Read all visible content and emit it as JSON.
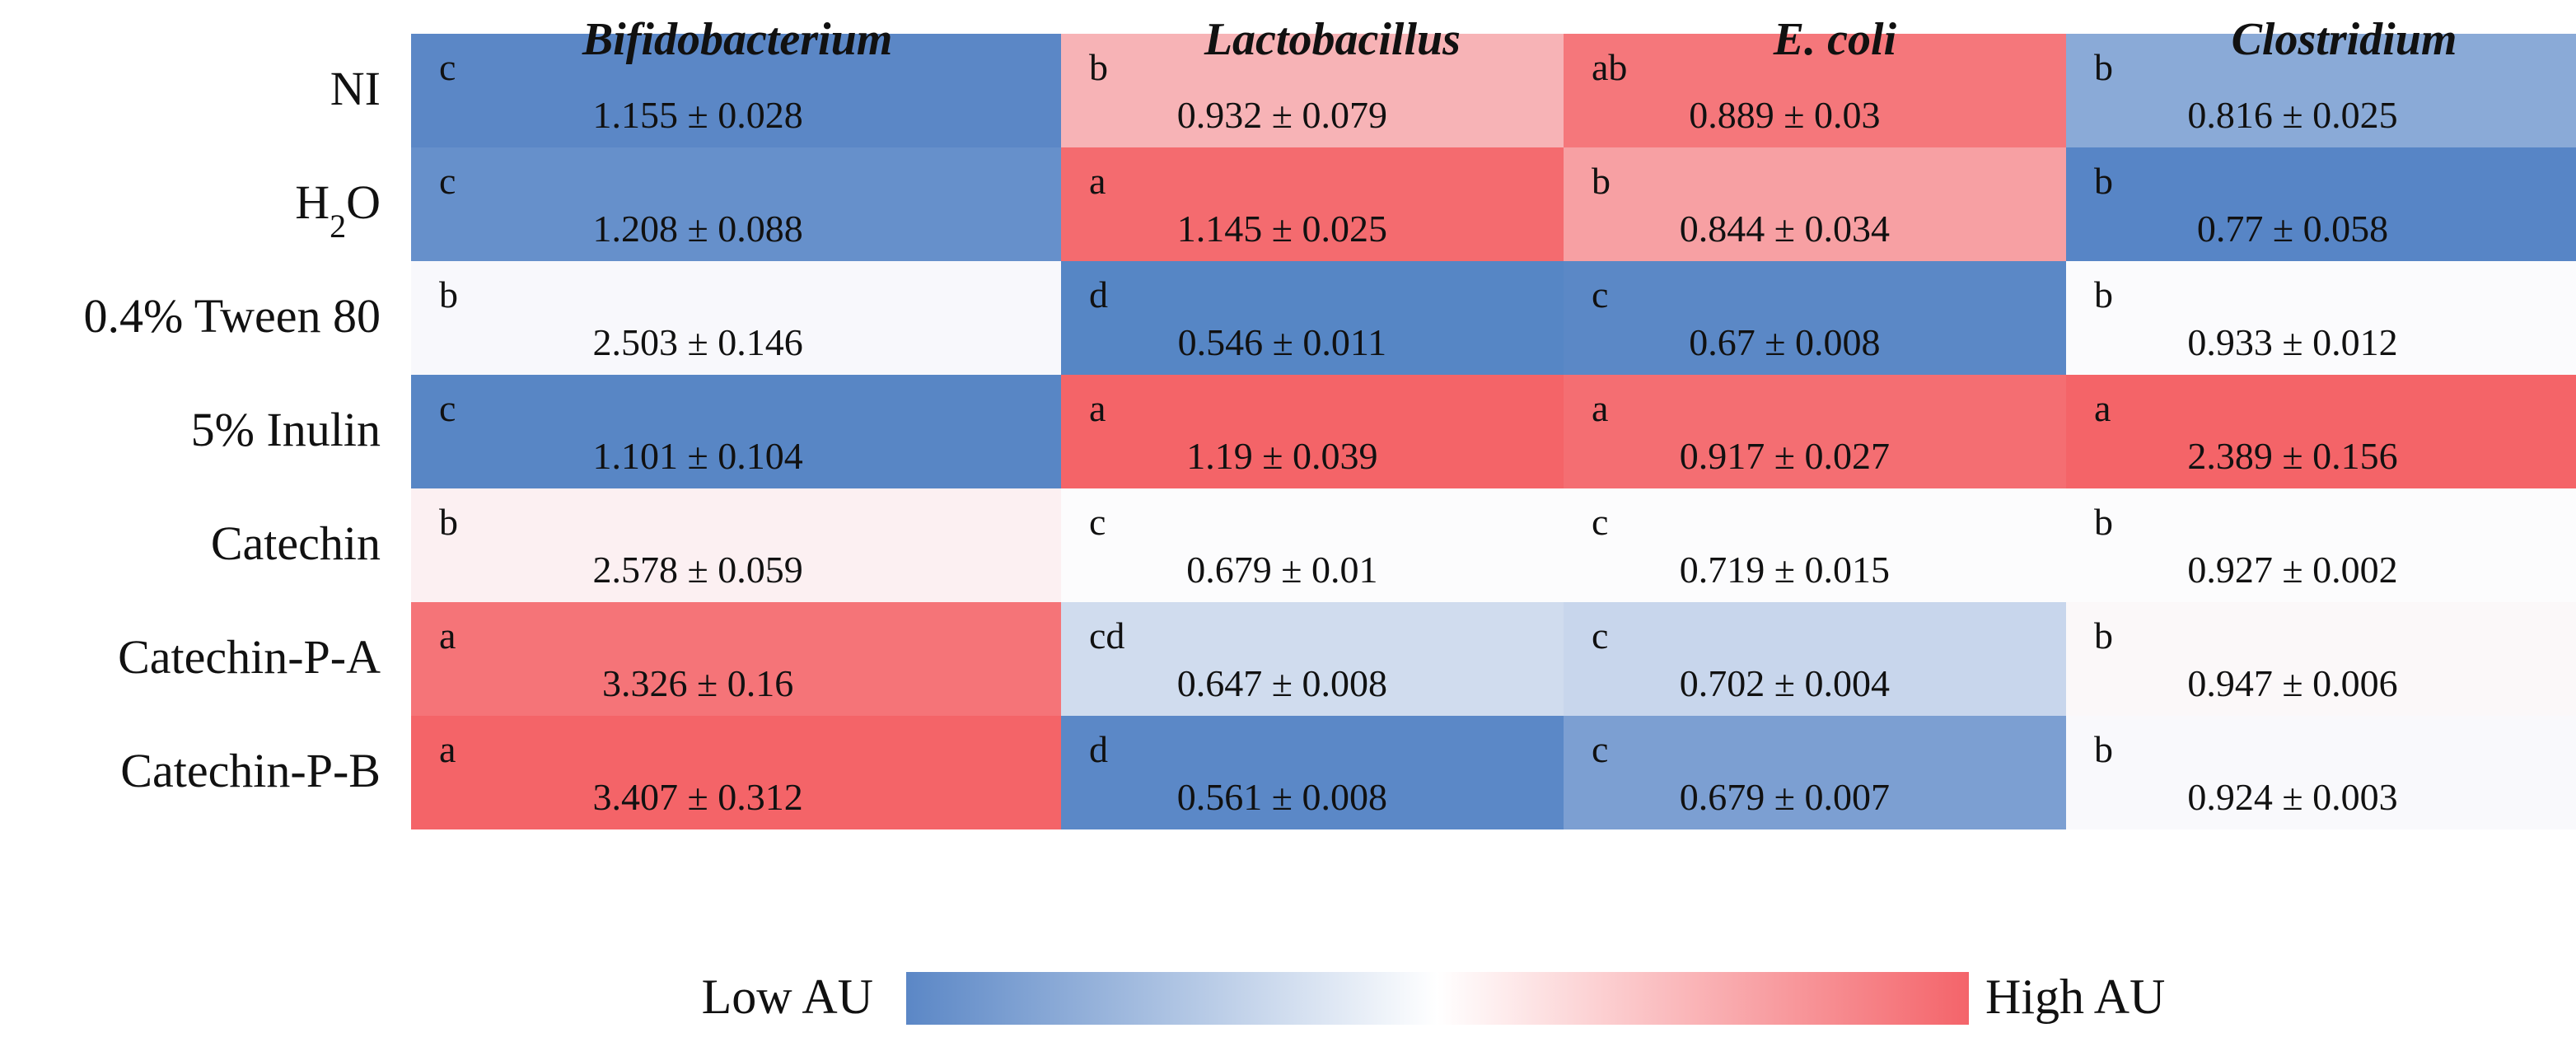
{
  "chart_data": {
    "type": "heatmap",
    "columns": [
      "Bifidobacterium",
      "Lactobacillus",
      "E. coli",
      "Clostridium"
    ],
    "rows": [
      {
        "label": "NI",
        "label_sub": ""
      },
      {
        "label": "H",
        "label_sub": "2",
        "label_tail": "O"
      },
      {
        "label": "0.4% Tween 80",
        "label_sub": ""
      },
      {
        "label": "5% Inulin",
        "label_sub": ""
      },
      {
        "label": "Catechin",
        "label_sub": ""
      },
      {
        "label": "Catechin-P-A",
        "label_sub": ""
      },
      {
        "label": "Catechin-P-B",
        "label_sub": ""
      }
    ],
    "values": [
      [
        1.155,
        0.932,
        0.889,
        0.816
      ],
      [
        1.208,
        1.145,
        0.844,
        0.77
      ],
      [
        2.503,
        0.546,
        0.67,
        0.933
      ],
      [
        1.101,
        1.19,
        0.917,
        2.389
      ],
      [
        2.578,
        0.679,
        0.719,
        0.927
      ],
      [
        3.326,
        0.647,
        0.702,
        0.947
      ],
      [
        3.407,
        0.561,
        0.679,
        0.924
      ]
    ],
    "value_labels": [
      [
        "1.155 ± 0.028",
        "0.932 ± 0.079",
        "0.889 ± 0.03",
        "0.816 ± 0.025"
      ],
      [
        "1.208 ± 0.088",
        "1.145 ± 0.025",
        "0.844 ± 0.034",
        "0.77 ± 0.058"
      ],
      [
        "2.503 ± 0.146",
        "0.546 ± 0.011",
        "0.67 ± 0.008",
        "0.933 ± 0.012"
      ],
      [
        "1.101 ± 0.104",
        "1.19 ± 0.039",
        "0.917 ± 0.027",
        "2.389 ± 0.156"
      ],
      [
        "2.578 ± 0.059",
        "0.679 ± 0.01",
        "0.719 ± 0.015",
        "0.927 ± 0.002"
      ],
      [
        "3.326 ± 0.16",
        "0.647 ± 0.008",
        "0.702 ± 0.004",
        "0.947 ± 0.006"
      ],
      [
        "3.407 ± 0.312",
        "0.561 ± 0.008",
        "0.679 ± 0.007",
        "0.924 ± 0.003"
      ]
    ],
    "letters": [
      [
        "c",
        "b",
        "ab",
        "b"
      ],
      [
        "c",
        "a",
        "b",
        "b"
      ],
      [
        "b",
        "d",
        "c",
        "b"
      ],
      [
        "c",
        "a",
        "a",
        "a"
      ],
      [
        "b",
        "c",
        "c",
        "b"
      ],
      [
        "a",
        "cd",
        "c",
        "b"
      ],
      [
        "a",
        "d",
        "c",
        "b"
      ]
    ],
    "cell_colors": [
      [
        "#5b87c6",
        "#f7b3b6",
        "#f5777b",
        "#8aaad7"
      ],
      [
        "#6690cb",
        "#f46b6f",
        "#f7a0a3",
        "#5785c6"
      ],
      [
        "#f8f8fc",
        "#5686c5",
        "#5b88c6",
        "#fbfbfd"
      ],
      [
        "#5886c5",
        "#f46468",
        "#f46e72",
        "#f46468"
      ],
      [
        "#fcf0f2",
        "#fcfcfd",
        "#fcfcfd",
        "#fcfcfd"
      ],
      [
        "#f57478",
        "#d0dcee",
        "#c8d6ec",
        "#fbf8f9"
      ],
      [
        "#f46468",
        "#5b88c7",
        "#7c9fd2",
        "#f9f9fc"
      ]
    ],
    "legend": {
      "low_label": "Low AU",
      "high_label": "High AU",
      "low_color": "#5b87c6",
      "mid_color": "#ffffff",
      "high_color": "#f4646a"
    }
  }
}
